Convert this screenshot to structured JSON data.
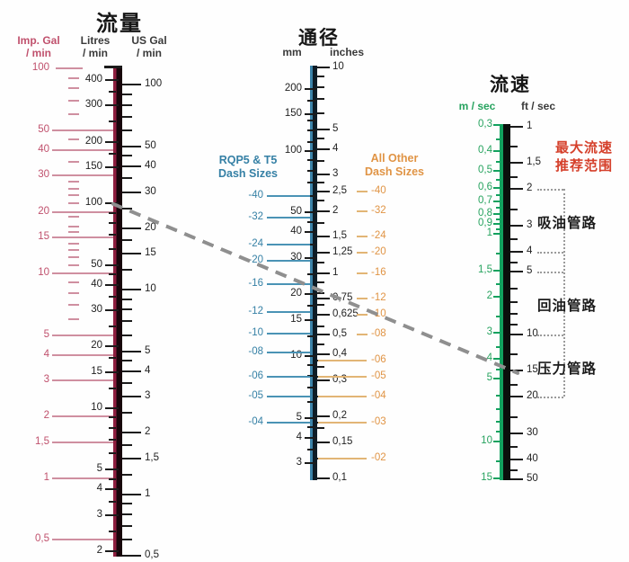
{
  "colors": {
    "background": "#fefefe",
    "crimson_bar": "#8e1f3f",
    "bar_black": "#17060b",
    "pink_text": "#c0516d",
    "pink_line": "#cf8fa0",
    "teal_text": "#3580a5",
    "teal_line": "#4a93b5",
    "teal_bar_edge": "#3b82a8",
    "orange_text": "#e09445",
    "orange_line": "#e2b575",
    "green_edge": "#12a15e",
    "green_text": "#27a35f",
    "black_tick": "#1b1b1b",
    "red_note": "#d5402b",
    "example_dash": "#8f8f8f",
    "bracket_dot": "#9b9b9b"
  },
  "chart_data": {
    "type": "nomogram",
    "description": "Hydraulic hose sizing nomogram: flow rate vs hose bore vs flow velocity, log scales",
    "scales": {
      "flow": {
        "title": "流量",
        "columns": {
          "imp_gal": {
            "header1": "Imp. Gal",
            "header2": "/ min",
            "labels": [
              {
                "t": "100",
                "v": 100
              },
              {
                "t": "50",
                "v": 50
              },
              {
                "t": "40",
                "v": 40
              },
              {
                "t": "30",
                "v": 30
              },
              {
                "t": "20",
                "v": 20
              },
              {
                "t": "15",
                "v": 15
              },
              {
                "t": "10",
                "v": 10
              },
              {
                "t": "5",
                "v": 5
              },
              {
                "t": "4",
                "v": 4
              },
              {
                "t": "3",
                "v": 3
              },
              {
                "t": "2",
                "v": 2
              },
              {
                "t": "1,5",
                "v": 1.5
              },
              {
                "t": "1",
                "v": 1
              },
              {
                "t": "0,5",
                "v": 0.5
              }
            ],
            "minor": [
              90,
              80,
              70,
              60,
              45,
              35,
              28,
              26,
              24,
              22,
              19,
              17,
              16,
              14,
              13,
              12,
              11,
              9,
              8,
              7,
              6
            ]
          },
          "litres": {
            "header1": "Litres",
            "header2": "/ min",
            "labels": [
              {
                "t": "400",
                "v": 400
              },
              {
                "t": "300",
                "v": 300
              },
              {
                "t": "200",
                "v": 200
              },
              {
                "t": "150",
                "v": 150
              },
              {
                "t": "100",
                "v": 100
              },
              {
                "t": "50",
                "v": 50
              },
              {
                "t": "40",
                "v": 40
              },
              {
                "t": "30",
                "v": 30
              },
              {
                "t": "20",
                "v": 20
              },
              {
                "t": "15",
                "v": 15
              },
              {
                "t": "10",
                "v": 10
              },
              {
                "t": "5",
                "v": 5
              },
              {
                "t": "4",
                "v": 4
              },
              {
                "t": "3",
                "v": 3
              },
              {
                "t": "2",
                "v": 2
              }
            ],
            "minor": [
              350,
              250,
              175,
              90,
              80,
              70,
              60,
              45,
              35,
              25,
              17.5,
              12.5,
              9,
              8,
              7,
              6,
              4.5,
              3.5,
              2.5
            ]
          },
          "us_gal": {
            "header1": "US Gal",
            "header2": "/ min",
            "labels": [
              {
                "t": "100",
                "v": 100
              },
              {
                "t": "50",
                "v": 50
              },
              {
                "t": "40",
                "v": 40
              },
              {
                "t": "30",
                "v": 30
              },
              {
                "t": "20",
                "v": 20
              },
              {
                "t": "15",
                "v": 15
              },
              {
                "t": "10",
                "v": 10
              },
              {
                "t": "5",
                "v": 5
              },
              {
                "t": "4",
                "v": 4
              },
              {
                "t": "3",
                "v": 3
              },
              {
                "t": "2",
                "v": 2
              },
              {
                "t": "1,5",
                "v": 1.5
              },
              {
                "t": "1",
                "v": 1
              },
              {
                "t": "0,5",
                "v": 0.5
              }
            ],
            "minor": [
              90,
              80,
              70,
              60,
              45,
              35,
              25,
              17.5,
              12.5,
              9,
              8,
              7,
              6,
              4.5,
              3.5,
              2.5,
              1.75,
              1.25,
              0.9,
              0.8,
              0.7,
              0.6
            ]
          }
        }
      },
      "bore": {
        "title": "通径",
        "columns": {
          "mm": {
            "header": "mm",
            "labels": [
              {
                "t": "200",
                "v": 200
              },
              {
                "t": "150",
                "v": 150
              },
              {
                "t": "100",
                "v": 100
              },
              {
                "t": "50",
                "v": 50
              },
              {
                "t": "40",
                "v": 40
              },
              {
                "t": "30",
                "v": 30
              },
              {
                "t": "20",
                "v": 20
              },
              {
                "t": "15",
                "v": 15
              },
              {
                "t": "10",
                "v": 10
              },
              {
                "t": "5",
                "v": 5
              },
              {
                "t": "4",
                "v": 4
              },
              {
                "t": "3",
                "v": 3
              }
            ],
            "minor": [
              175,
              140,
              125,
              110,
              90,
              80,
              70,
              60,
              45,
              35,
              25,
              17.5,
              12.5,
              9,
              8,
              7,
              6,
              4.5,
              3.5
            ]
          },
          "inches": {
            "header": "inches",
            "labels": [
              {
                "t": "10",
                "v": 10
              },
              {
                "t": "5",
                "v": 5
              },
              {
                "t": "4",
                "v": 4
              },
              {
                "t": "3",
                "v": 3
              },
              {
                "t": "2,5",
                "v": 2.5
              },
              {
                "t": "2",
                "v": 2
              },
              {
                "t": "1,5",
                "v": 1.5
              },
              {
                "t": "1,25",
                "v": 1.25
              },
              {
                "t": "1",
                "v": 1
              },
              {
                "t": "0,75",
                "v": 0.75
              },
              {
                "t": "0,625",
                "v": 0.625
              },
              {
                "t": "0,5",
                "v": 0.5
              },
              {
                "t": "0,4",
                "v": 0.4
              },
              {
                "t": "0,3",
                "v": 0.3
              },
              {
                "t": "0,2",
                "v": 0.2
              },
              {
                "t": "0,15",
                "v": 0.15
              },
              {
                "t": "0,1",
                "v": 0.1
              }
            ],
            "minor": [
              9,
              8,
              7,
              6,
              4.5,
              3.5,
              2.75,
              2.25,
              1.75,
              1.125,
              0.9,
              0.8,
              0.7,
              0.55,
              0.45,
              0.375,
              0.35,
              0.3125,
              0.25,
              0.1875,
              0.175,
              0.125
            ]
          }
        },
        "dash_left": {
          "label1": "RQP5 & T5",
          "label2": "Dash Sizes",
          "items": [
            {
              "t": "-40",
              "mm": 60
            },
            {
              "t": "-32",
              "mm": 47
            },
            {
              "t": "-24",
              "mm": 35
            },
            {
              "t": "-20",
              "mm": 29
            },
            {
              "t": "-16",
              "mm": 22.4
            },
            {
              "t": "-12",
              "mm": 16.4
            },
            {
              "t": "-10",
              "mm": 12.9
            },
            {
              "t": "-08",
              "mm": 10.4
            },
            {
              "t": "-06",
              "mm": 7.9
            },
            {
              "t": "-05",
              "mm": 6.35
            },
            {
              "t": "-04",
              "mm": 4.75
            }
          ]
        },
        "dash_right": {
          "label1": "All Other",
          "label2": "Dash Sizes",
          "items": [
            {
              "t": "-40",
              "in": 2.5
            },
            {
              "t": "-32",
              "in": 2
            },
            {
              "t": "-24",
              "in": 1.5
            },
            {
              "t": "-20",
              "in": 1.25
            },
            {
              "t": "-16",
              "in": 1
            },
            {
              "t": "-12",
              "in": 0.75
            },
            {
              "t": "-10",
              "in": 0.625
            },
            {
              "t": "-08",
              "in": 0.5
            },
            {
              "t": "-06",
              "in": 0.375,
              "long": true
            },
            {
              "t": "-05",
              "in": 0.3125,
              "long": true
            },
            {
              "t": "-04",
              "in": 0.25,
              "long": true
            },
            {
              "t": "-03",
              "in": 0.1875,
              "long": true
            },
            {
              "t": "-02",
              "in": 0.125,
              "long": true
            }
          ]
        }
      },
      "velocity": {
        "title": "流速",
        "columns": {
          "m_sec": {
            "header": "m / sec",
            "labels": [
              {
                "t": "0,3",
                "v": 0.3
              },
              {
                "t": "0,4",
                "v": 0.4
              },
              {
                "t": "0,5",
                "v": 0.5
              },
              {
                "t": "0,6",
                "v": 0.6
              },
              {
                "t": "0,7",
                "v": 0.7
              },
              {
                "t": "0,8",
                "v": 0.8
              },
              {
                "t": "0,9",
                "v": 0.9
              },
              {
                "t": "1",
                "v": 1
              },
              {
                "t": "1,5",
                "v": 1.5
              },
              {
                "t": "2",
                "v": 2
              },
              {
                "t": "3",
                "v": 3
              },
              {
                "t": "4",
                "v": 4
              },
              {
                "t": "5",
                "v": 5
              },
              {
                "t": "10",
                "v": 10
              },
              {
                "t": "15",
                "v": 15
              }
            ],
            "minor": [
              0.35,
              0.45,
              0.55,
              0.65,
              0.75,
              0.85,
              0.95,
              1.25,
              1.75,
              2.5,
              3.5,
              4.5,
              6,
              7,
              8,
              9,
              12.5
            ]
          },
          "ft_sec": {
            "header": "ft / sec",
            "labels": [
              {
                "t": "1",
                "v": 1
              },
              {
                "t": "1,5",
                "v": 1.5
              },
              {
                "t": "2",
                "v": 2
              },
              {
                "t": "3",
                "v": 3
              },
              {
                "t": "4",
                "v": 4
              },
              {
                "t": "5",
                "v": 5
              },
              {
                "t": "10",
                "v": 10
              },
              {
                "t": "15",
                "v": 15
              },
              {
                "t": "20",
                "v": 20
              },
              {
                "t": "30",
                "v": 30
              },
              {
                "t": "40",
                "v": 40
              },
              {
                "t": "50",
                "v": 50
              }
            ],
            "minor": [
              1.25,
              1.75,
              2.5,
              3.5,
              4.5,
              6,
              7,
              8,
              9,
              12.5,
              17.5,
              25,
              35,
              45
            ]
          }
        },
        "recommended_note": {
          "line1": "最大流速",
          "line2": "推荐范围"
        },
        "pipe_ranges": [
          {
            "label": "吸油管路",
            "ft_from": 2,
            "ft_to": 4
          },
          {
            "label": "回油管路",
            "ft_from": 5,
            "ft_to": 10
          },
          {
            "label": "压力管路",
            "ft_from": 10,
            "ft_to": 20
          }
        ],
        "bracket_ft_stubs": [
          2,
          4,
          5,
          10,
          20
        ]
      }
    },
    "example_line": {
      "from_litres_per_min": 100,
      "to_ft_sec": 15.5
    }
  }
}
